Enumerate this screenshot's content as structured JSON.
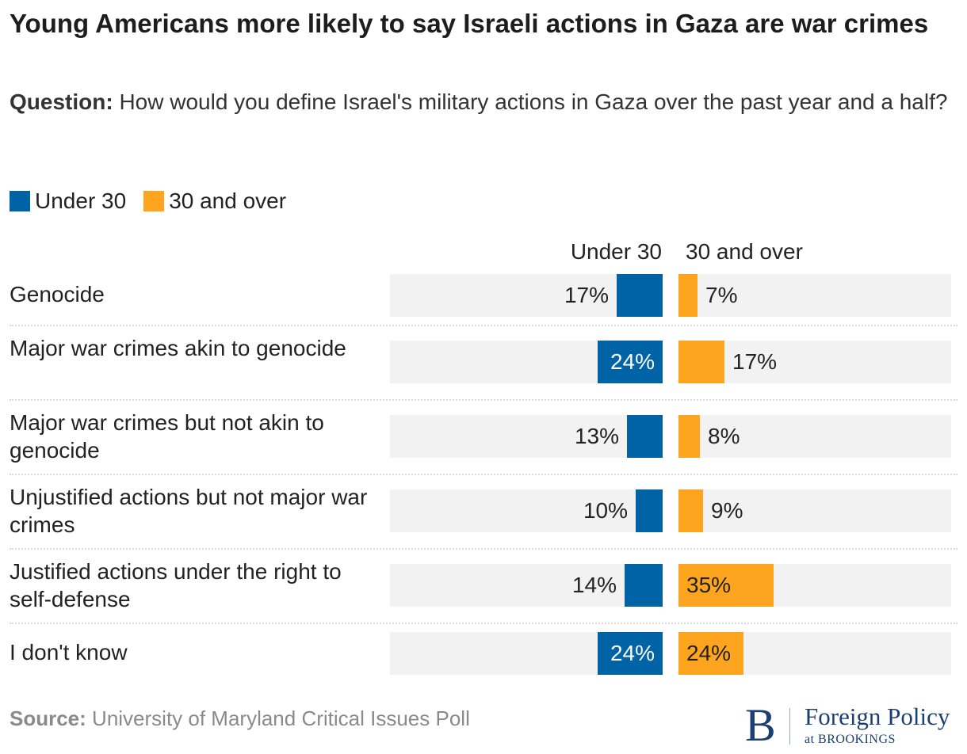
{
  "header": {
    "title": "Young Americans more likely to say Israeli actions in Gaza are war crimes",
    "question_lead": "Question:",
    "question_text": " How would you define Israel's military actions in Gaza over the past year and a half?"
  },
  "colors": {
    "under30": "#0063a6",
    "over30": "#ffa41f",
    "track": "#f2f2f2"
  },
  "chart_data": {
    "type": "bar",
    "orientation": "horizontal-diverging",
    "categories": [
      "Genocide",
      "Major war crimes akin to genocide",
      "Major war crimes but not akin to genocide",
      "Unjustified actions but not major war crimes",
      "Justified actions under the right to self-defense",
      "I don't know"
    ],
    "series": [
      {
        "name": "Under 30",
        "values": [
          17,
          24,
          13,
          10,
          14,
          24
        ]
      },
      {
        "name": "30 and over",
        "values": [
          7,
          17,
          8,
          9,
          35,
          24
        ]
      }
    ],
    "value_labels": {
      "Under 30": [
        "17%",
        "24%",
        "13%",
        "10%",
        "14%",
        "24%"
      ],
      "30 and over": [
        "7%",
        "17%",
        "8%",
        "9%",
        "35%",
        "24%"
      ]
    },
    "column_headers": [
      "Under 30",
      "30 and over"
    ],
    "legend": [
      "Under 30",
      "30 and over"
    ],
    "units": "%",
    "xlim": [
      0,
      100
    ]
  },
  "footer": {
    "source_lead": "Source:",
    "source_text": " University of Maryland Critical Issues Poll",
    "logo_mark": "B",
    "logo_name": "Foreign Policy",
    "logo_sub": "at BROOKINGS"
  }
}
